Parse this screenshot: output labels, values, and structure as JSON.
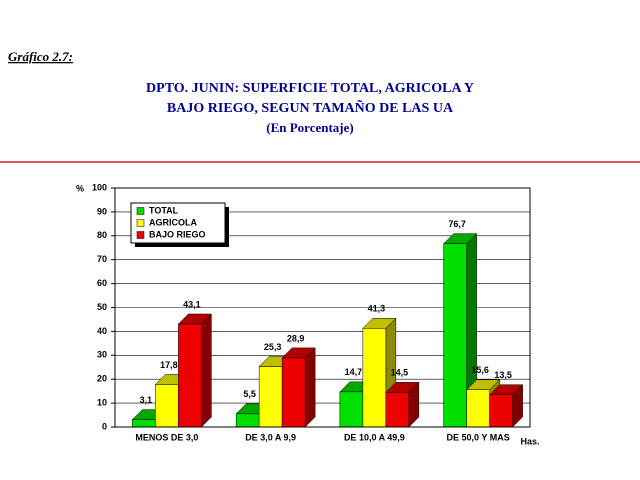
{
  "chart_data": {
    "type": "bar3d",
    "figure_label": "Gráfico 2.7:",
    "title": [
      "DPTO. JUNIN: SUPERFICIE TOTAL, AGRICOLA Y",
      "BAJO RIEGO, SEGUN TAMAÑO DE LAS UA"
    ],
    "subtitle": "(En Porcentaje)",
    "ylabel": "%",
    "xlabel": "Has.",
    "categories": [
      "MENOS DE 3,0",
      "DE 3,0 A 9,9",
      "DE 10,0 A 49,9",
      "DE 50,0 Y MAS"
    ],
    "series": [
      {
        "name": "TOTAL",
        "color": "#00e000",
        "values": [
          3.1,
          5.5,
          14.7,
          76.7
        ],
        "value_labels": [
          "3,1",
          "5,5",
          "14,7",
          "76,7"
        ]
      },
      {
        "name": "AGRICOLA",
        "color": "#ffff00",
        "values": [
          17.8,
          25.3,
          41.3,
          15.6
        ],
        "value_labels": [
          "17,8",
          "25,3",
          "41,3",
          "15,6"
        ]
      },
      {
        "name": "BAJO RIEGO",
        "color": "#ee0000",
        "values": [
          43.1,
          28.9,
          14.5,
          13.5
        ],
        "value_labels": [
          "43,1",
          "28,9",
          "14,5",
          "13,5"
        ]
      }
    ],
    "ylim": [
      0,
      100
    ],
    "yticks": [
      0,
      10,
      20,
      30,
      40,
      50,
      60,
      70,
      80,
      90,
      100
    ],
    "grid": true,
    "legend": "upper left"
  }
}
